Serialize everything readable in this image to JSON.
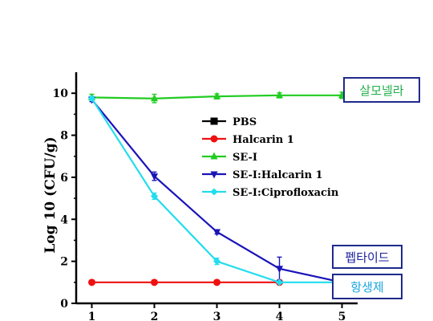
{
  "chart_data": {
    "type": "line",
    "title": "",
    "xlabel": "",
    "ylabel": "Log 10 (CFU/g)",
    "x": [
      1,
      2,
      3,
      4,
      5
    ],
    "xlim": [
      0.75,
      5.25
    ],
    "ylim": [
      0,
      11
    ],
    "y_ticks": [
      0,
      2,
      4,
      6,
      8,
      10
    ],
    "x_ticks": [
      1,
      2,
      3,
      4,
      5
    ],
    "legend_position": "upper-middle",
    "series": [
      {
        "name": "PBS",
        "color": "#000000",
        "marker": "square",
        "values": [
          null,
          null,
          null,
          null,
          null
        ]
      },
      {
        "name": "Halcarin 1",
        "color": "#ee1111",
        "marker": "circle",
        "values": [
          1.0,
          1.0,
          1.0,
          1.0,
          null
        ]
      },
      {
        "name": "SE-I",
        "color": "#22cc22",
        "marker": "triangle-up",
        "values": [
          9.8,
          9.75,
          9.85,
          9.9,
          9.9
        ],
        "errors": [
          0.15,
          0.2,
          0.12,
          0.12,
          0.15
        ]
      },
      {
        "name": "SE-I:Halcarin 1",
        "color": "#1a14b8",
        "marker": "triangle-down",
        "values": [
          9.7,
          6.05,
          3.4,
          1.65,
          1.0
        ],
        "errors": [
          0.1,
          0.2,
          0.1,
          0.55,
          0.1
        ]
      },
      {
        "name": "SE-I:Ciprofloxacin",
        "color": "#22ddee",
        "marker": "diamond",
        "values": [
          9.75,
          5.1,
          2.0,
          1.0,
          1.0
        ],
        "errors": [
          0.1,
          0.15,
          0.15,
          0.05,
          0.05
        ]
      }
    ],
    "annotations": [
      "살모넬라",
      "펩타이드",
      "항생제"
    ]
  }
}
